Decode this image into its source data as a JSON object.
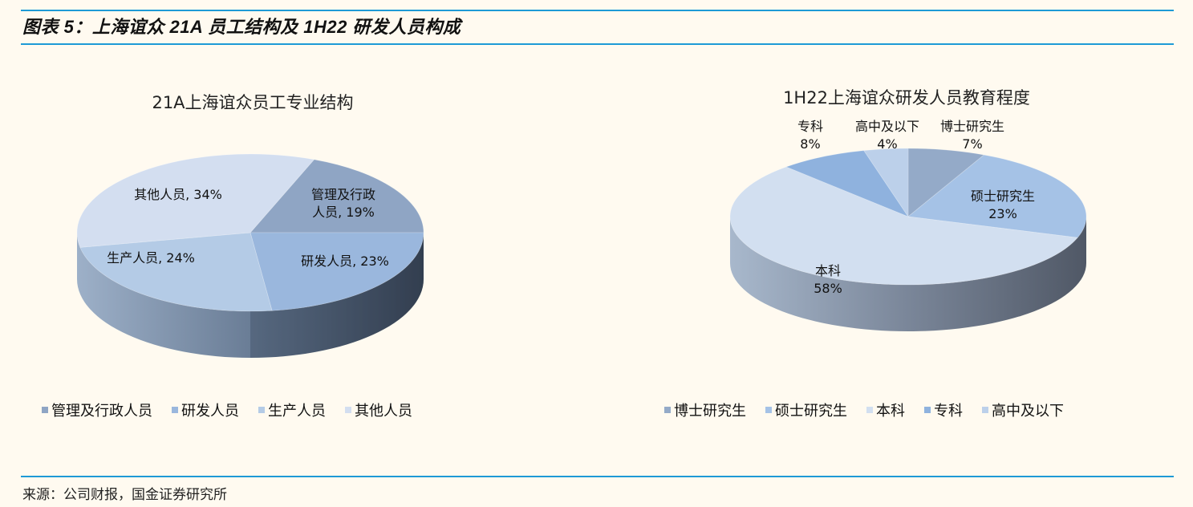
{
  "figure": {
    "title": "图表 5：上海谊众 21A 员工结构及 1H22 研发人员构成",
    "source": "来源：公司财报，国金证券研究所"
  },
  "colors": {
    "rule": "#1e9ad6",
    "background": "#fffaf0"
  },
  "chart_data": [
    {
      "type": "pie",
      "title": "21A上海谊众员工专业结构",
      "categories": [
        "管理及行政人员",
        "研发人员",
        "生产人员",
        "其他人员"
      ],
      "values": [
        19,
        23,
        24,
        34
      ],
      "unit": "%",
      "data_labels": [
        "管理及行政人员, 19%",
        "研发人员, 23%",
        "生产人员, 24%",
        "其他人员, 34%"
      ],
      "colors": [
        "#8fa5c4",
        "#9ab7dd",
        "#b4cbe6",
        "#d3def0"
      ],
      "legend_position": "bottom",
      "style": "3d"
    },
    {
      "type": "pie",
      "title": "1H22上海谊众研发人员教育程度",
      "categories": [
        "博士研究生",
        "硕士研究生",
        "本科",
        "专科",
        "高中及以下"
      ],
      "values": [
        7,
        23,
        58,
        8,
        4
      ],
      "unit": "%",
      "data_labels": [
        "博士研究生 7%",
        "硕士研究生 23%",
        "本科 58%",
        "专科 8%",
        "高中及以下 4%"
      ],
      "colors": [
        "#94aac8",
        "#a5c2e6",
        "#d2dff0",
        "#8fb2de",
        "#bcd0ea"
      ],
      "legend_position": "bottom",
      "style": "3d"
    }
  ],
  "left_chart": {
    "title": "21A上海谊众员工专业结构",
    "labels": [
      {
        "line1": "管理及行政",
        "line2": "人员, 19%"
      },
      {
        "line1": "研发人员, 23%"
      },
      {
        "line1": "生产人员, 24%"
      },
      {
        "line1": "其他人员, 34%"
      }
    ],
    "legend": [
      "管理及行政人员",
      "研发人员",
      "生产人员",
      "其他人员"
    ]
  },
  "right_chart": {
    "title": "1H22上海谊众研发人员教育程度",
    "labels": [
      {
        "line1": "博士研究生",
        "line2": "7%"
      },
      {
        "line1": "硕士研究生",
        "line2": "23%"
      },
      {
        "line1": "本科",
        "line2": "58%"
      },
      {
        "line1": "专科",
        "line2": "8%"
      },
      {
        "line1": "高中及以下",
        "line2": "4%"
      }
    ],
    "legend": [
      "博士研究生",
      "硕士研究生",
      "本科",
      "专科",
      "高中及以下"
    ]
  }
}
